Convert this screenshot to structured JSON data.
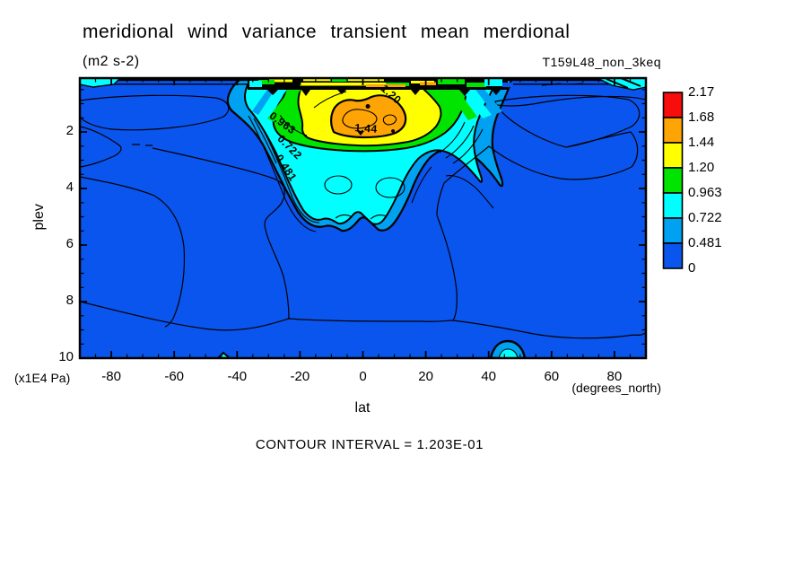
{
  "title": "meridional wind variance transient mean merdional",
  "units_label": "(m2 s-2)",
  "run_label": "T159L48_non_3keq",
  "footer": "CONTOUR INTERVAL = 1.203E-01",
  "axes": {
    "x": {
      "label": "lat",
      "unit": "(degrees_north)",
      "min": -90,
      "max": 90,
      "minor_step": 5,
      "ticks": [
        {
          "v": -80,
          "label": "-80"
        },
        {
          "v": -60,
          "label": "-60"
        },
        {
          "v": -40,
          "label": "-40"
        },
        {
          "v": -20,
          "label": "-20"
        },
        {
          "v": 0,
          "label": "0"
        },
        {
          "v": 20,
          "label": "20"
        },
        {
          "v": 40,
          "label": "40"
        },
        {
          "v": 60,
          "label": "60"
        },
        {
          "v": 80,
          "label": "80"
        }
      ]
    },
    "y": {
      "label": "plev",
      "unit": "(x1E4 Pa)",
      "top_value": 0.1,
      "bottom_value": 10,
      "minor_step": 0.5,
      "ticks": [
        {
          "v": 2,
          "label": "2"
        },
        {
          "v": 4,
          "label": "4"
        },
        {
          "v": 6,
          "label": "6"
        },
        {
          "v": 8,
          "label": "8"
        },
        {
          "v": 10,
          "label": "10"
        }
      ]
    }
  },
  "colorbar": {
    "labels": [
      "2.17",
      "1.68",
      "1.44",
      "1.20",
      "0.963",
      "0.722",
      "0.481",
      "0"
    ],
    "colors": [
      "#f80c0c",
      "#ffa405",
      "#ffff00",
      "#00e400",
      "#00ffff",
      "#00a1f1",
      "#0a55ee"
    ]
  },
  "palette": {
    "red": "#f80c0c",
    "orange": "#ffa405",
    "yellow": "#ffff00",
    "green": "#00e400",
    "cyan": "#00ffff",
    "sky": "#00a1f1",
    "blue": "#0a55ee",
    "black": "#000000"
  },
  "contour_labels": [
    "0.963",
    "0.722",
    "0.481",
    "1.44",
    "1.20"
  ],
  "chart_data": {
    "type": "heatmap",
    "subtype": "filled_contour",
    "title": "meridional wind variance transient mean merdional",
    "units": "m2 s-2",
    "run": "T159L48_non_3keq",
    "xlabel": "lat",
    "x_units": "degrees_north",
    "ylabel": "plev",
    "y_units": "x1E4 Pa",
    "xlim": [
      -90,
      90
    ],
    "ylim_top_to_bottom": [
      0.1,
      10
    ],
    "grid": false,
    "legend_position": "right-colorbar",
    "contour_interval": 0.1203,
    "fill_levels": [
      0,
      0.481,
      0.722,
      0.963,
      1.2,
      1.44,
      1.68,
      2.17
    ],
    "fill_colors": [
      "#0a55ee",
      "#00a1f1",
      "#00ffff",
      "#00e400",
      "#ffff00",
      "#ffa405",
      "#f80c0c"
    ],
    "labeled_contours": [
      0.481,
      0.722,
      0.963,
      1.2,
      1.44
    ],
    "features": [
      {
        "name": "background",
        "value": "< 0.481 over most of the domain"
      },
      {
        "name": "tropical upper-level maximum",
        "lat_range": [
          -12,
          14
        ],
        "plev_range": [
          1.0,
          2.1
        ],
        "peak": "> 1.44 (orange core) centered near lat 3, plev 1.4"
      },
      {
        "name": "surrounding enhanced region",
        "lat_range": [
          -33,
          47
        ],
        "plev_range": [
          0.3,
          5.5
        ],
        "value": "0.481 - 1.44, two lobes reaching plev ~5.5 near lat -8 and +8"
      },
      {
        "name": "top-boundary band of packed contours",
        "lat_range": [
          -38,
          45
        ],
        "plev_range": [
          0.1,
          0.4
        ],
        "value": "locally > 1.2 with yellow/orange/green streaks"
      },
      {
        "name": "polar top corners",
        "lat_range": [
          -90,
          -77
        ],
        "value": "0.722 - 0.963 (cyan patches, both poles)"
      },
      {
        "name": "midlatitude weak contour loops",
        "lat_range": [
          -88,
          -20
        ],
        "plev_range": [
          1.5,
          6.5
        ]
      },
      {
        "name": "near-surface blob",
        "lat_range": [
          42,
          49
        ],
        "plev_range": [
          9.4,
          10
        ],
        "value": "0.481 - 0.963"
      },
      {
        "name": "tiny near-surface bump",
        "lat_range": [
          -47,
          -44
        ],
        "plev_range": [
          9.8,
          10
        ]
      }
    ]
  }
}
